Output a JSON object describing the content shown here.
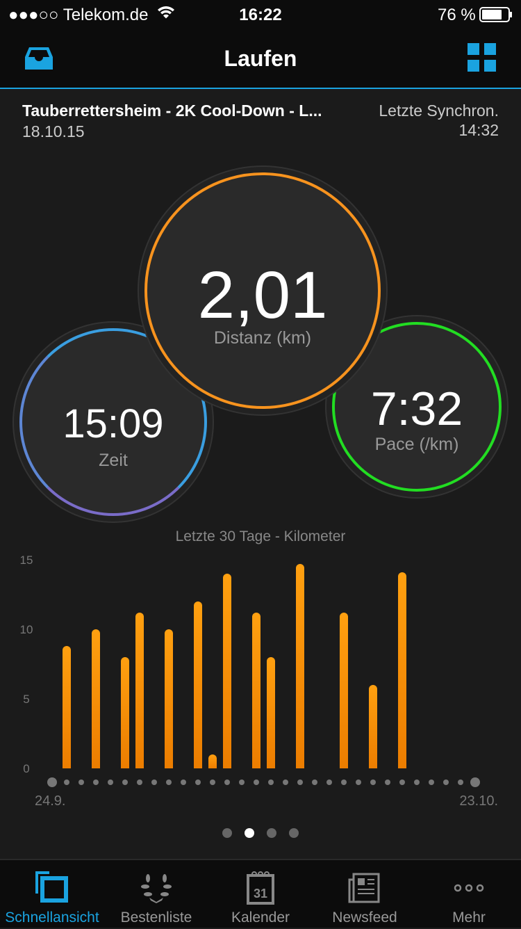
{
  "status": {
    "carrier": "●●●○○ Telekom.de",
    "time": "16:22",
    "battery": "76 %"
  },
  "nav": {
    "title": "Laufen",
    "accent": "#1aa3e0"
  },
  "activity": {
    "name": "Tauberrettersheim - 2K Cool-Down - L...",
    "date": "18.10.15",
    "sync_label": "Letzte Synchron.",
    "sync_time": "14:32"
  },
  "stats": {
    "distance": {
      "value": "2,01",
      "label": "Distanz (km)",
      "color": "#f7931e"
    },
    "time": {
      "value": "15:09",
      "label": "Zeit",
      "color": "#3a9ee0"
    },
    "pace": {
      "value": "7:32",
      "label": "Pace (/km)",
      "color": "#22dd22"
    }
  },
  "chart_data": {
    "type": "bar",
    "title": "Letzte 30 Tage - Kilometer",
    "ylim": [
      0,
      15
    ],
    "yticks": [
      "0",
      "5",
      "10",
      "15"
    ],
    "x_start_label": "24.9.",
    "x_end_label": "23.10.",
    "days": 30,
    "bars": [
      {
        "day": 1,
        "value": 8.8
      },
      {
        "day": 3,
        "value": 10
      },
      {
        "day": 5,
        "value": 8
      },
      {
        "day": 6,
        "value": 11.2
      },
      {
        "day": 8,
        "value": 10
      },
      {
        "day": 10,
        "value": 12
      },
      {
        "day": 11,
        "value": 1
      },
      {
        "day": 12,
        "value": 14
      },
      {
        "day": 14,
        "value": 11.2
      },
      {
        "day": 15,
        "value": 8
      },
      {
        "day": 17,
        "value": 14.7
      },
      {
        "day": 20,
        "value": 11.2
      },
      {
        "day": 22,
        "value": 6
      },
      {
        "day": 24,
        "value": 14.1
      }
    ],
    "color": "#f7931e"
  },
  "pager": {
    "count": 4,
    "active": 1
  },
  "tabs": [
    {
      "label": "Schnellansicht",
      "icon": "quick-view-icon",
      "active": true
    },
    {
      "label": "Bestenliste",
      "icon": "laurel-icon"
    },
    {
      "label": "Kalender",
      "icon": "calendar-icon",
      "day": "31"
    },
    {
      "label": "Newsfeed",
      "icon": "newspaper-icon"
    },
    {
      "label": "Mehr",
      "icon": "more-icon"
    }
  ]
}
